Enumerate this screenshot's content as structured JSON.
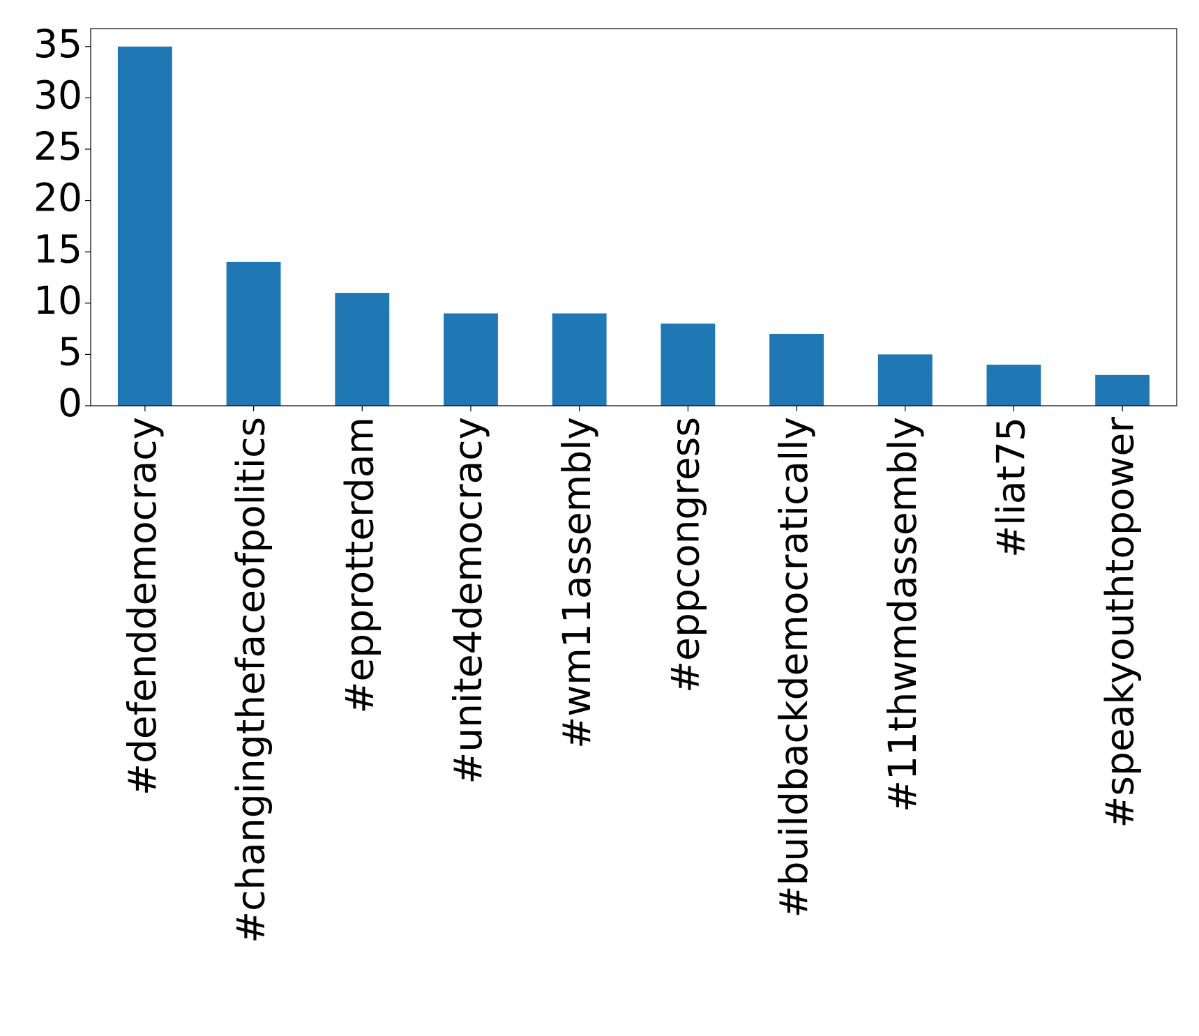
{
  "chart_data": {
    "type": "bar",
    "categories": [
      "#defenddemocracy",
      "#changingthefaceofpolitics",
      "#epprotterdam",
      "#unite4democracy",
      "#wm11assembly",
      "#eppcongress",
      "#buildbackdemocratically",
      "#11thwmdassembly",
      "#liat75",
      "#speakyouthtopower"
    ],
    "values": [
      35,
      14,
      11,
      9,
      9,
      8,
      7,
      5,
      4,
      3
    ],
    "color": "#1f77b4",
    "ylim": [
      0,
      36.75
    ],
    "yticks": [
      0,
      5,
      10,
      15,
      20,
      25,
      30,
      35
    ],
    "grid": false
  }
}
